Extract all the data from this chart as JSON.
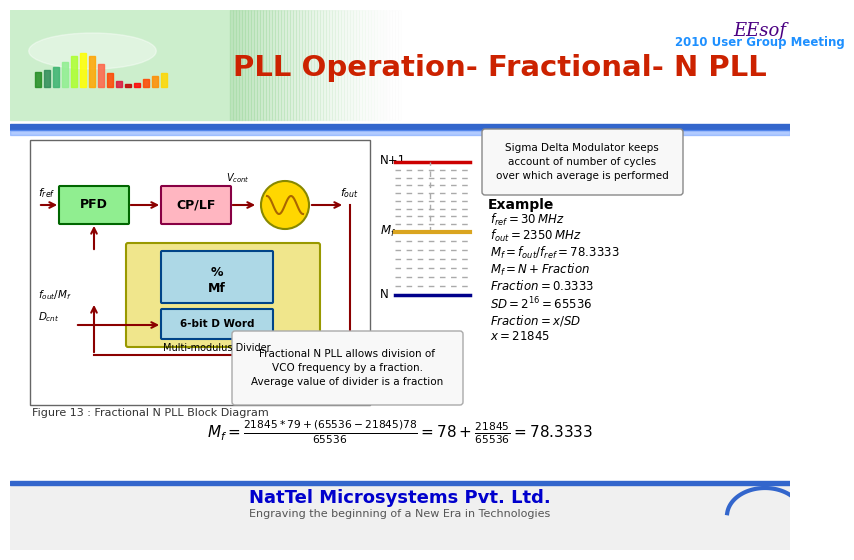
{
  "title": "PLL Operation- Fractional- N PLL",
  "title_color": "#CC2200",
  "eesof_text": "EEsof",
  "eesof_color": "#4B0082",
  "meeting_text": "2010 User Group Meeting",
  "meeting_color": "#1E90FF",
  "bg_color": "#FFFFFF",
  "footer_text1": "NatTel Microsystems Pvt. Ltd.",
  "footer_text2": "Engraving the beginning of a New Era in Technologies",
  "footer_color": "#0000CD",
  "footer_sub_color": "#555555",
  "figure_caption": "Figure 13 : Fractional N PLL Block Diagram",
  "box_note": "Fractional N PLL allows division of\nVCO frequency by a fraction.\nAverage value of divider is a fraction",
  "sigma_note": "Sigma Delta Modulator keeps\naccount of number of cycles\nover which average is performed",
  "example_title": "Example",
  "pfd_color": "#90EE90",
  "cplf_color": "#FFB6C1",
  "vco_color": "#FFD700",
  "mf_box_color": "#ADD8E6",
  "mf_outer_color": "#F0E68C",
  "arrow_color": "#8B0000",
  "n1_line_color": "#CC0000",
  "mf_line_color": "#DAA520",
  "n_line_color": "#00008B",
  "dash_color": "#AAAAAA"
}
